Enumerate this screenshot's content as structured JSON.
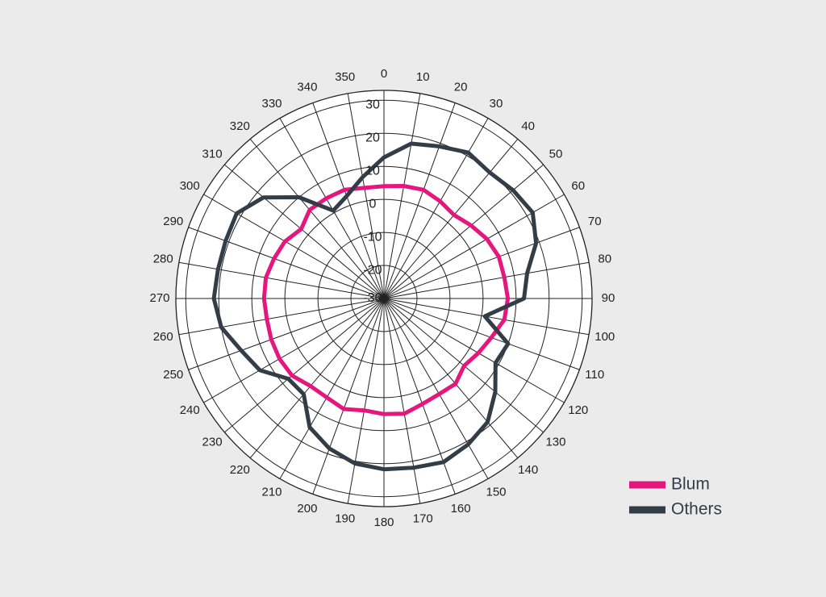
{
  "chart_data": {
    "type": "polar",
    "x": [
      0,
      10,
      20,
      30,
      40,
      50,
      60,
      70,
      80,
      90,
      100,
      110,
      120,
      130,
      140,
      150,
      160,
      170,
      180,
      190,
      200,
      210,
      220,
      230,
      240,
      250,
      260,
      270,
      280,
      290,
      300,
      310,
      320,
      330,
      340,
      350
    ],
    "rlim": [
      -30,
      33
    ],
    "rticks": [
      -30,
      -20,
      -10,
      0,
      10,
      20,
      30
    ],
    "grid": true,
    "legend": "lower right",
    "series": [
      {
        "name": "Blum",
        "color": "#e5177e",
        "values": [
          4,
          4.6,
          5,
          4,
          3,
          4.4,
          6,
          7,
          7,
          7.5,
          7,
          4.6,
          3,
          1.7,
          3.7,
          3.4,
          4,
          5.4,
          5,
          4.4,
          5.6,
          4.6,
          4.6,
          6.3,
          6.5,
          6.3,
          6,
          6.3,
          6.3,
          5.4,
          4.6,
          2.7,
          5,
          5,
          5,
          4
        ]
      },
      {
        "name": "Others",
        "color": "#333d47",
        "values": [
          12.7,
          17.6,
          19,
          21,
          19.8,
          21,
          22,
          19,
          14,
          12.4,
          1,
          10,
          9,
          14,
          18.8,
          21,
          22.7,
          22,
          21.7,
          20.7,
          18.3,
          15,
          7.8,
          7.8,
          13.4,
          16,
          20,
          21.5,
          21,
          21,
          21.5,
          17.6,
          10,
          0.7,
          3,
          7.3
        ]
      }
    ]
  }
}
